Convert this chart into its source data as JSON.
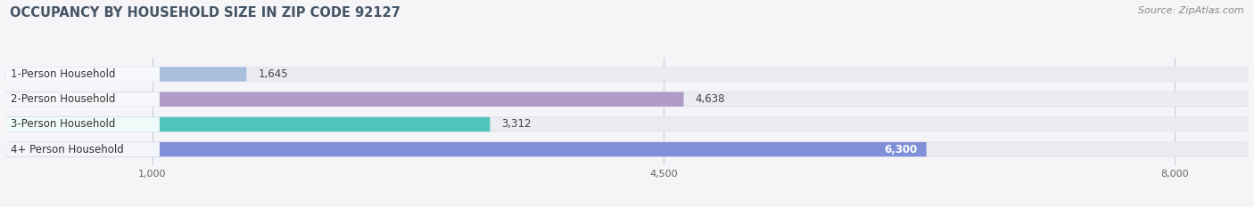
{
  "title": "OCCUPANCY BY HOUSEHOLD SIZE IN ZIP CODE 92127",
  "source": "Source: ZipAtlas.com",
  "categories": [
    "1-Person Household",
    "2-Person Household",
    "3-Person Household",
    "4+ Person Household"
  ],
  "values": [
    1645,
    4638,
    3312,
    6300
  ],
  "bar_colors": [
    "#a8c0de",
    "#b09ac8",
    "#4ec4bb",
    "#8090d8"
  ],
  "bar_labels": [
    "1,645",
    "4,638",
    "3,312",
    "6,300"
  ],
  "label_colors": [
    "#333333",
    "#333333",
    "#333333",
    "#ffffff"
  ],
  "xmin": 0,
  "xmax": 8500,
  "xticks": [
    1000,
    4500,
    8000
  ],
  "xticklabels": [
    "1,000",
    "4,500",
    "8,000"
  ],
  "background_color": "#f5f5f8",
  "bar_bg_color": "#ebebf2",
  "label_box_color": "#ffffff",
  "title_fontsize": 10.5,
  "source_fontsize": 8,
  "bar_height": 0.58,
  "figsize": [
    14.06,
    2.33
  ],
  "dpi": 100
}
